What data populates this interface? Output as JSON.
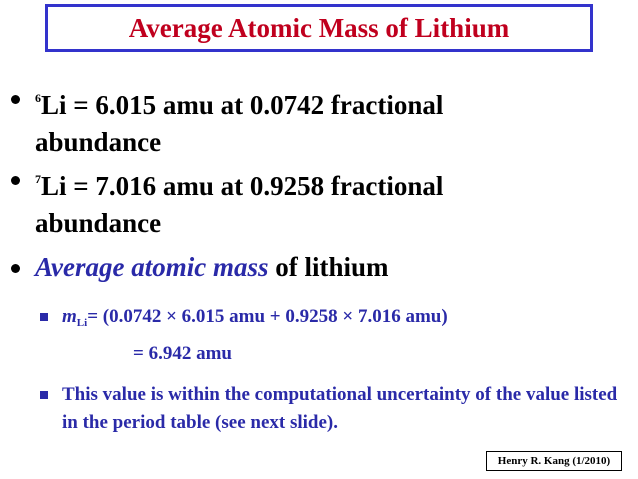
{
  "title": "Average Atomic Mass of Lithium",
  "bullets": [
    {
      "isotope_mass": "6",
      "element": "Li",
      "text": " = 6.015 amu at 0.0742 fractional abundance"
    },
    {
      "isotope_mass": "7",
      "element": "Li",
      "text": " = 7.016 amu at 0.9258 fractional abundance"
    },
    {
      "emphasis": "Average atomic mass",
      "text": " of lithium"
    }
  ],
  "sub_bullets": [
    {
      "symbol": "m",
      "subscript": "Li",
      "text": "= (0.0742 × 6.015 amu + 0.9258 × 7.016 amu)",
      "result": "= 6.942 amu"
    },
    {
      "text": "This value is within the computational uncertainty of the value listed in the period table (see next slide)."
    }
  ],
  "footer": "Henry R. Kang (1/2010)"
}
